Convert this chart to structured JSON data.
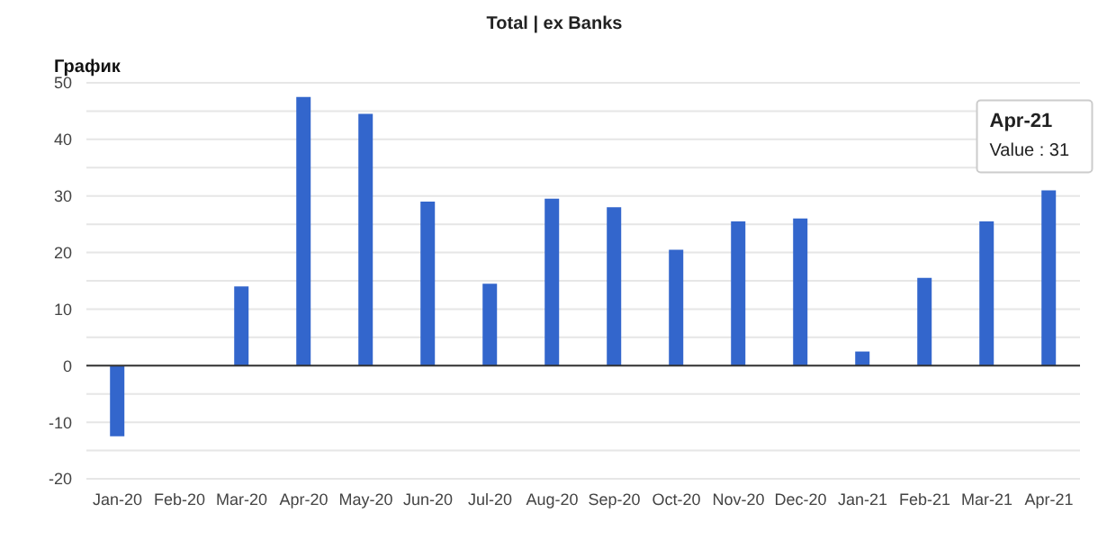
{
  "chart_data": {
    "type": "bar",
    "title": "Total | ex Banks",
    "subtitle": "График",
    "categories": [
      "Jan-20",
      "Feb-20",
      "Mar-20",
      "Apr-20",
      "May-20",
      "Jun-20",
      "Jul-20",
      "Aug-20",
      "Sep-20",
      "Oct-20",
      "Nov-20",
      "Dec-20",
      "Jan-21",
      "Feb-21",
      "Mar-21",
      "Apr-21"
    ],
    "values": [
      -12.5,
      0,
      14,
      47.5,
      44.5,
      29,
      14.5,
      29.5,
      28,
      20.5,
      25.5,
      26,
      2.5,
      15.5,
      25.5,
      31
    ],
    "color": "#3366cc",
    "ylim": [
      -20,
      50
    ],
    "yticks": [
      -20,
      {
        "value": -15,
        "label": null
      },
      -10,
      {
        "value": -5,
        "label": null
      },
      0,
      {
        "value": 5,
        "label": null
      },
      10,
      {
        "value": 15,
        "label": null
      },
      20,
      {
        "value": 25,
        "label": null
      },
      30,
      {
        "value": 35,
        "label": null
      },
      40,
      {
        "value": 45,
        "label": null
      },
      50
    ],
    "grid": "y",
    "annotations": [
      {
        "text": "Apr-21\nValue : 31",
        "x": "Apr-21",
        "y": 31
      }
    ]
  }
}
